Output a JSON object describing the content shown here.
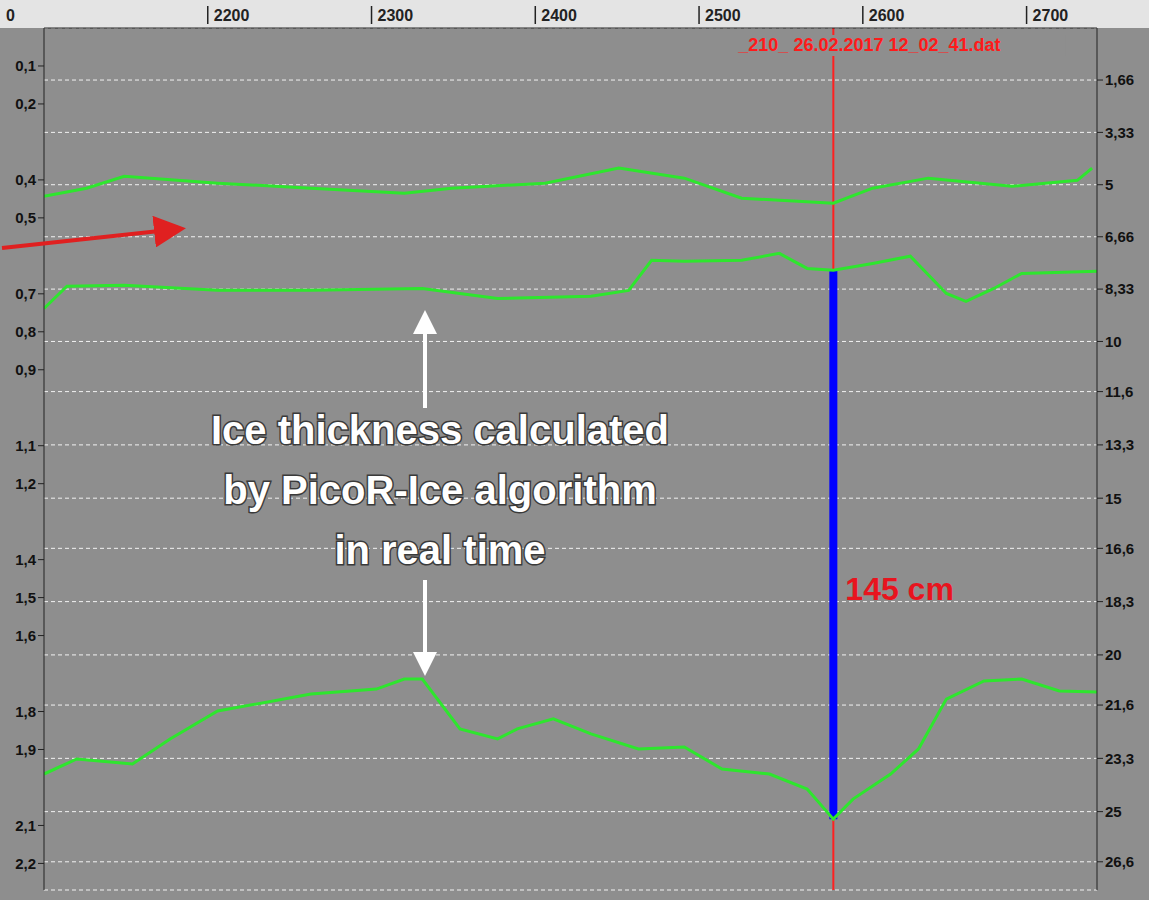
{
  "chart_data": {
    "type": "line",
    "file_label": "_210_  26.02.2017 12_02_41.dat",
    "annotation": [
      "Ice thickness calculated",
      "by PicoR-Ice algorithm",
      "in real time"
    ],
    "x_origin_label": "0",
    "xlim": [
      2100,
      2743
    ],
    "xticks": [
      2200,
      2300,
      2400,
      2500,
      2600,
      2700
    ],
    "ylim": [
      0,
      27.5
    ],
    "yticks": [
      {
        "value": 1.66,
        "label": "1,66"
      },
      {
        "value": 3.33,
        "label": "3,33"
      },
      5,
      {
        "value": 6.66,
        "label": "6,66"
      },
      {
        "value": 8.33,
        "label": "8,33"
      },
      10,
      {
        "value": 11.6,
        "label": "11,6"
      },
      {
        "value": 13.3,
        "label": "13,3"
      },
      15,
      {
        "value": 16.6,
        "label": "16,6"
      },
      {
        "value": 18.3,
        "label": "18,3"
      },
      20,
      {
        "value": 21.6,
        "label": "21,6"
      },
      {
        "value": 23.3,
        "label": "23,3"
      },
      25,
      {
        "value": 26.6,
        "label": "26,6"
      }
    ],
    "y2lim": [
      0,
      2.27
    ],
    "y2ticks": [
      {
        "value": 0.1,
        "label": "0,1"
      },
      {
        "value": 0.2,
        "label": "0,2"
      },
      {
        "value": 0.4,
        "label": "0,4"
      },
      {
        "value": 0.5,
        "label": "0,5"
      },
      {
        "value": 0.7,
        "label": "0,7"
      },
      {
        "value": 0.8,
        "label": "0,8"
      },
      {
        "value": 0.9,
        "label": "0,9"
      },
      {
        "value": 1.1,
        "label": "1,1"
      },
      {
        "value": 1.2,
        "label": "1,2"
      },
      {
        "value": 1.4,
        "label": "1,4"
      },
      {
        "value": 1.5,
        "label": "1,5"
      },
      {
        "value": 1.6,
        "label": "1,6"
      },
      {
        "value": 1.8,
        "label": "1,8"
      },
      {
        "value": 1.9,
        "label": "1,9"
      },
      {
        "value": 2.1,
        "label": "2,1"
      },
      {
        "value": 2.2,
        "label": "2,2"
      }
    ],
    "grid": true,
    "series": [
      {
        "color": "#2ee62e",
        "x": [
          2100,
          2126,
          2149,
          2206,
          2263,
          2320,
          2349,
          2406,
          2451,
          2491,
          2526,
          2582,
          2606,
          2640,
          2691,
          2731,
          2740
        ],
        "values": [
          5.37,
          5.11,
          4.73,
          4.95,
          5.11,
          5.27,
          5.11,
          4.95,
          4.47,
          4.79,
          5.43,
          5.59,
          5.11,
          4.79,
          5.05,
          4.86,
          4.47
        ]
      },
      {
        "color": "#2ee62e",
        "x": [
          2100,
          2114,
          2149,
          2206,
          2263,
          2331,
          2377,
          2434,
          2457,
          2471,
          2491,
          2526,
          2549,
          2566,
          2582,
          2606,
          2629,
          2651,
          2663,
          2680,
          2697,
          2743
        ],
        "values": [
          8.95,
          8.24,
          8.21,
          8.37,
          8.37,
          8.31,
          8.63,
          8.56,
          8.37,
          7.41,
          7.44,
          7.41,
          7.19,
          7.67,
          7.73,
          7.51,
          7.28,
          8.47,
          8.72,
          8.31,
          7.83,
          7.76
        ]
      },
      {
        "color": "#2ee62e",
        "x": [
          2100,
          2120,
          2154,
          2177,
          2206,
          2263,
          2303,
          2320,
          2331,
          2354,
          2377,
          2389,
          2411,
          2434,
          2463,
          2491,
          2514,
          2543,
          2566,
          2582,
          2594,
          2617,
          2634,
          2651,
          2674,
          2697,
          2720,
          2743
        ],
        "values": [
          23.8,
          23.32,
          23.48,
          22.68,
          21.79,
          21.25,
          21.09,
          20.77,
          20.77,
          22.36,
          22.68,
          22.36,
          22.04,
          22.52,
          23.0,
          22.94,
          23.64,
          23.8,
          24.28,
          25.24,
          24.6,
          23.8,
          23.0,
          21.41,
          20.83,
          20.77,
          21.15,
          21.18
        ]
      }
    ],
    "marker_line": {
      "x": 2582,
      "color": "#ff2020"
    },
    "measurement": {
      "x": 2582,
      "y_top": 7.73,
      "y_bottom": 25.24,
      "label": "145 cm",
      "color": "#0000ff"
    }
  }
}
